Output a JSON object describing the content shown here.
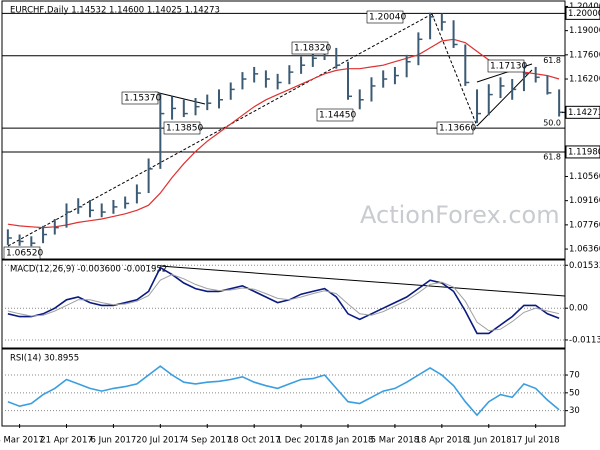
{
  "chart_data": [
    {
      "type": "ohlc",
      "title": "EURCHF,Daily  1.14532 1.14600 1.14025 1.14273",
      "watermark": "ActionForex.com",
      "color": "#3b5a73",
      "categories": [
        null,
        "8 Mar 2017",
        null,
        null,
        null,
        "21 Apr 2017",
        null,
        null,
        null,
        "6 Jun 2017",
        null,
        null,
        null,
        "20 Jul 2017",
        null,
        null,
        null,
        "4 Sep 2017",
        null,
        null,
        null,
        "18 Oct 2017",
        null,
        null,
        null,
        "1 Dec 2017",
        null,
        null,
        null,
        "18 Jan 2018",
        null,
        null,
        null,
        "5 Mar 2018",
        null,
        null,
        null,
        "18 Apr 2018",
        null,
        null,
        null,
        "1 Jun 2018",
        null,
        null,
        null,
        "17 Jul 2018",
        null,
        null
      ],
      "high": [
        1.075,
        1.072,
        1.071,
        1.077,
        1.081,
        1.09,
        1.093,
        1.092,
        1.09,
        1.092,
        1.094,
        1.101,
        1.116,
        1.1537,
        1.152,
        1.15,
        1.151,
        1.153,
        1.156,
        1.16,
        1.166,
        1.169,
        1.167,
        1.165,
        1.17,
        1.175,
        1.179,
        1.1832,
        1.18,
        1.172,
        1.156,
        1.163,
        1.167,
        1.169,
        1.176,
        1.189,
        1.2004,
        1.2,
        1.196,
        1.182,
        1.156,
        1.159,
        1.163,
        1.162,
        1.1713,
        1.169,
        1.164,
        1.156
      ],
      "low": [
        1.066,
        1.0655,
        1.0652,
        1.067,
        1.072,
        1.076,
        1.084,
        1.082,
        1.082,
        1.084,
        1.087,
        1.09,
        1.096,
        1.11,
        1.1385,
        1.14,
        1.141,
        1.144,
        1.145,
        1.15,
        1.156,
        1.16,
        1.157,
        1.156,
        1.159,
        1.165,
        1.169,
        1.173,
        1.168,
        1.15,
        1.1445,
        1.149,
        1.157,
        1.159,
        1.163,
        1.17,
        1.185,
        1.19,
        1.18,
        1.158,
        1.1366,
        1.141,
        1.151,
        1.15,
        1.155,
        1.16,
        1.153,
        1.1403
      ],
      "close": [
        1.07,
        1.068,
        1.067,
        1.072,
        1.076,
        1.085,
        1.088,
        1.086,
        1.085,
        1.088,
        1.09,
        1.096,
        1.11,
        1.142,
        1.145,
        1.142,
        1.146,
        1.148,
        1.15,
        1.156,
        1.162,
        1.165,
        1.162,
        1.16,
        1.166,
        1.17,
        1.174,
        1.18,
        1.17,
        1.152,
        1.15,
        1.158,
        1.162,
        1.164,
        1.172,
        1.185,
        1.198,
        1.195,
        1.182,
        1.16,
        1.142,
        1.153,
        1.158,
        1.156,
        1.165,
        1.163,
        1.154,
        1.14273
      ],
      "sma": {
        "color": "#e03030",
        "values": [
          1.078,
          1.077,
          1.0765,
          1.076,
          1.0765,
          1.0775,
          1.079,
          1.08,
          1.081,
          1.0825,
          1.084,
          1.086,
          1.089,
          1.096,
          1.105,
          1.113,
          1.12,
          1.126,
          1.131,
          1.136,
          1.141,
          1.146,
          1.15,
          1.153,
          1.156,
          1.159,
          1.162,
          1.165,
          1.167,
          1.168,
          1.168,
          1.169,
          1.17,
          1.172,
          1.174,
          1.176,
          1.18,
          1.184,
          1.185,
          1.183,
          1.178,
          1.173,
          1.17,
          1.168,
          1.166,
          1.165,
          1.164,
          1.162
        ]
      },
      "ylim": [
        1.059,
        1.206
      ],
      "yticks": [
        {
          "value": 1.204,
          "label": "1.20400"
        },
        {
          "value": 1.19,
          "label": "1.19000"
        },
        {
          "value": 1.176,
          "label": "1.17600"
        },
        {
          "value": 1.162,
          "label": "1.16200"
        },
        {
          "value": 1.1056,
          "label": "1.10560"
        },
        {
          "value": 1.0916,
          "label": "1.09160"
        },
        {
          "value": 1.0776,
          "label": "1.07760"
        },
        {
          "value": 1.0636,
          "label": "1.06360"
        }
      ],
      "levels": [
        {
          "value": 1.2,
          "axis_label": "1.20000"
        },
        {
          "value": 1.1755,
          "label": "61.8"
        },
        {
          "value": 1.1336,
          "label": "50.0"
        },
        {
          "value": 1.1198,
          "label": "61.8",
          "axis_label": "1.11980"
        }
      ],
      "last": {
        "value": 1.14273,
        "axis_label": "1.14273"
      },
      "annotations": [
        "1.20040",
        "1.18320",
        "1.15370",
        "1.13850",
        "1.14450",
        "1.13660",
        "1.17130",
        "1.06520"
      ]
    },
    {
      "type": "line",
      "title": "MACD(12,26,9) -0.003600 -0.001952",
      "series": [
        {
          "color": "#0a1a80",
          "values": [
            -0.002,
            -0.003,
            -0.003,
            -0.002,
            0,
            0.003,
            0.004,
            0.002,
            0.001,
            0.001,
            0.002,
            0.003,
            0.006,
            0.0145,
            0.012,
            0.009,
            0.007,
            0.006,
            0.006,
            0.007,
            0.008,
            0.006,
            0.004,
            0.002,
            0.003,
            0.005,
            0.006,
            0.007,
            0.004,
            -0.002,
            -0.004,
            -0.002,
            0,
            0.002,
            0.004,
            0.007,
            0.01,
            0.009,
            0.006,
            -0.001,
            -0.009,
            -0.009,
            -0.006,
            -0.003,
            0.001,
            0.001,
            -0.002,
            -0.0036
          ]
        },
        {
          "color": "#a0a0a0",
          "values": [
            -0.001,
            -0.002,
            -0.0028,
            -0.0025,
            -0.001,
            0.001,
            0.003,
            0.003,
            0.002,
            0.0012,
            0.0015,
            0.0025,
            0.0045,
            0.01,
            0.012,
            0.0105,
            0.0085,
            0.007,
            0.0063,
            0.0065,
            0.0072,
            0.0068,
            0.0052,
            0.0035,
            0.003,
            0.004,
            0.0052,
            0.0062,
            0.0052,
            0.0015,
            -0.002,
            -0.0025,
            -0.0012,
            0.0008,
            0.0028,
            0.0055,
            0.0085,
            0.0093,
            0.0075,
            0.0025,
            -0.005,
            -0.008,
            -0.0075,
            -0.0048,
            -0.0015,
            0,
            -0.001,
            -0.001952
          ]
        }
      ],
      "ylim": [
        -0.0135,
        0.0165
      ],
      "yticks": [
        0.015338,
        {
          "value": 0,
          "label": "0.00"
        },
        -0.011344
      ]
    },
    {
      "type": "line",
      "title": "RSI(14) 30.8955",
      "series": [
        {
          "color": "#3a9ee0",
          "values": [
            40,
            35,
            38,
            48,
            55,
            65,
            60,
            55,
            52,
            55,
            57,
            60,
            70,
            80,
            70,
            62,
            60,
            62,
            63,
            65,
            68,
            62,
            58,
            55,
            60,
            65,
            66,
            70,
            55,
            40,
            38,
            45,
            52,
            55,
            62,
            70,
            78,
            70,
            58,
            40,
            25,
            40,
            48,
            45,
            60,
            55,
            42,
            30.8955
          ]
        }
      ],
      "ylim": [
        15,
        97
      ],
      "yticks": [
        70,
        50,
        30
      ]
    }
  ]
}
